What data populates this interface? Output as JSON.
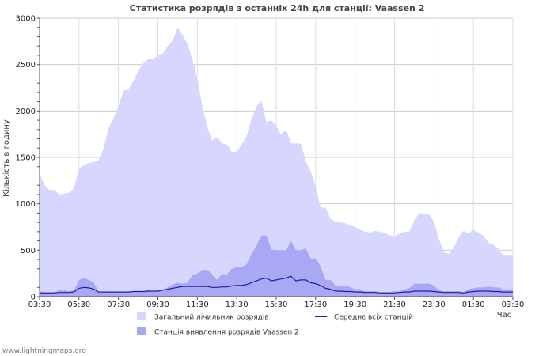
{
  "chart_data": {
    "type": "area",
    "title": "Статистика розрядів з останніх 24h для станції: Vaassen 2",
    "ylabel": "Кількість в годину",
    "xlabel": "Час",
    "ylim": [
      0,
      3000
    ],
    "y_ticks": [
      0,
      500,
      1000,
      1500,
      2000,
      2500,
      3000
    ],
    "y_tick_labels": [
      "0",
      "500",
      "1000",
      "1500",
      "2000",
      "2500",
      "3000"
    ],
    "x_tick_labels": [
      "03:30",
      "05:30",
      "07:30",
      "09:30",
      "11:30",
      "13:30",
      "15:30",
      "17:30",
      "19:30",
      "21:30",
      "23:30",
      "01:30",
      "03:30"
    ],
    "x_hours_per_tick": 2,
    "total_hours": 24,
    "x_times": [
      0,
      0.25,
      0.5,
      0.75,
      1,
      1.25,
      1.5,
      1.75,
      2,
      2.25,
      2.5,
      2.75,
      3,
      3.25,
      3.5,
      3.75,
      4,
      4.25,
      4.5,
      4.75,
      5,
      5.25,
      5.5,
      5.75,
      6,
      6.25,
      6.5,
      6.75,
      7,
      7.25,
      7.5,
      7.75,
      8,
      8.25,
      8.5,
      8.75,
      9,
      9.25,
      9.5,
      9.75,
      10,
      10.25,
      10.5,
      10.75,
      11,
      11.25,
      11.5,
      11.75,
      12,
      12.25,
      12.5,
      12.75,
      13,
      13.25,
      13.5,
      13.75,
      14,
      14.25,
      14.5,
      14.75,
      15,
      15.25,
      15.5,
      15.75,
      16,
      16.25,
      16.5,
      16.75,
      17,
      17.25,
      17.5,
      17.75,
      18,
      18.25,
      18.5,
      18.75,
      19,
      19.25,
      19.5,
      19.75,
      20,
      20.25,
      20.5,
      20.75,
      21,
      21.25,
      21.5,
      21.75,
      22,
      22.25,
      22.5,
      22.75,
      23,
      23.25,
      23.5,
      23.75,
      24
    ],
    "series": [
      {
        "name": "Загальний лічильник розрядів",
        "kind": "area",
        "color": "#d6d6ff",
        "values": [
          1330,
          1200,
          1150,
          1150,
          1100,
          1110,
          1120,
          1170,
          1380,
          1420,
          1440,
          1450,
          1470,
          1600,
          1820,
          1920,
          2050,
          2220,
          2230,
          2320,
          2430,
          2510,
          2560,
          2560,
          2600,
          2620,
          2700,
          2760,
          2900,
          2820,
          2720,
          2560,
          2350,
          2050,
          1830,
          1680,
          1720,
          1650,
          1640,
          1560,
          1560,
          1640,
          1730,
          1920,
          2050,
          2110,
          1880,
          1900,
          1840,
          1740,
          1800,
          1650,
          1650,
          1650,
          1460,
          1350,
          1190,
          960,
          960,
          840,
          810,
          800,
          790,
          770,
          750,
          720,
          700,
          690,
          710,
          700,
          690,
          660,
          650,
          680,
          700,
          700,
          820,
          900,
          890,
          890,
          810,
          620,
          480,
          460,
          530,
          640,
          710,
          680,
          720,
          690,
          660,
          580,
          560,
          520,
          450,
          450,
          450
        ]
      },
      {
        "name": "Станція виявлення розрядів Vaassen 2",
        "kind": "area",
        "color": "#a8a8f5",
        "values": [
          60,
          50,
          50,
          50,
          70,
          70,
          60,
          70,
          180,
          200,
          180,
          150,
          50,
          50,
          50,
          50,
          50,
          50,
          50,
          60,
          60,
          60,
          70,
          60,
          60,
          80,
          100,
          130,
          150,
          140,
          150,
          230,
          250,
          290,
          290,
          240,
          180,
          240,
          240,
          300,
          320,
          320,
          350,
          460,
          550,
          660,
          660,
          510,
          500,
          500,
          500,
          600,
          500,
          500,
          520,
          410,
          410,
          330,
          180,
          180,
          120,
          120,
          120,
          100,
          80,
          80,
          60,
          60,
          60,
          50,
          50,
          50,
          60,
          60,
          80,
          90,
          140,
          140,
          140,
          140,
          120,
          70,
          60,
          60,
          60,
          60,
          50,
          80,
          90,
          100,
          100,
          110,
          100,
          100,
          80,
          80,
          80
        ]
      },
      {
        "name": "Середнє всіх станцій",
        "kind": "line",
        "color": "#1f1fa6",
        "values": [
          40,
          40,
          40,
          40,
          45,
          45,
          45,
          50,
          90,
          100,
          95,
          80,
          50,
          50,
          50,
          50,
          50,
          50,
          50,
          55,
          55,
          55,
          60,
          60,
          60,
          70,
          80,
          90,
          100,
          110,
          110,
          110,
          110,
          110,
          110,
          100,
          100,
          105,
          105,
          115,
          120,
          120,
          130,
          150,
          170,
          190,
          200,
          170,
          180,
          190,
          200,
          220,
          170,
          180,
          180,
          150,
          140,
          120,
          90,
          80,
          60,
          60,
          55,
          55,
          50,
          50,
          45,
          45,
          45,
          40,
          40,
          40,
          40,
          45,
          50,
          50,
          60,
          60,
          60,
          60,
          55,
          50,
          45,
          45,
          45,
          45,
          40,
          50,
          55,
          60,
          60,
          60,
          55,
          55,
          50,
          50,
          50
        ]
      }
    ],
    "legend": [
      {
        "label": "Загальний лічильник розрядів",
        "swatch": "area",
        "color": "#d6d6ff"
      },
      {
        "label": "Середнє всіх станцій",
        "swatch": "line",
        "color": "#1f1fa6"
      },
      {
        "label": "Станція виявлення розрядів Vaassen 2",
        "swatch": "area",
        "color": "#a8a8f5"
      }
    ],
    "grid": true
  },
  "footer_text": "www.lightningmaps.org"
}
